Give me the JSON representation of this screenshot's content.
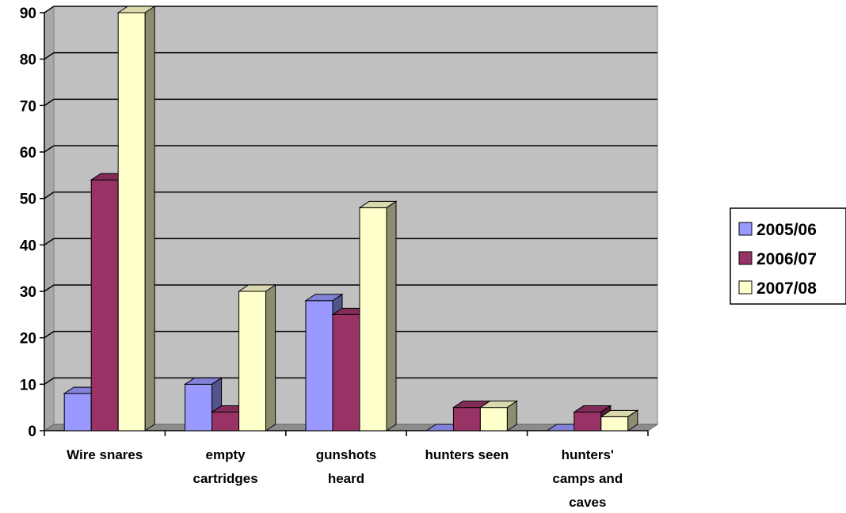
{
  "chart_data": {
    "type": "bar",
    "style": "3d-clustered-column",
    "categories": [
      [
        "Wire snares"
      ],
      [
        "empty",
        "cartridges"
      ],
      [
        "gunshots",
        "heard"
      ],
      [
        "hunters seen"
      ],
      [
        "hunters'",
        "camps and",
        "caves"
      ]
    ],
    "series": [
      {
        "name": "2005/06",
        "values": [
          8,
          10,
          28,
          0,
          0
        ],
        "color": "#9999FF"
      },
      {
        "name": "2006/07",
        "values": [
          54,
          4,
          25,
          5,
          4
        ],
        "color": "#993366"
      },
      {
        "name": "2007/08",
        "values": [
          90,
          30,
          48,
          5,
          3
        ],
        "color": "#FFFFCC"
      }
    ],
    "title": "",
    "xlabel": "",
    "ylabel": "",
    "ylim": [
      0,
      90
    ],
    "yticks": [
      "0",
      "10",
      "20",
      "30",
      "40",
      "50",
      "60",
      "70",
      "80",
      "90"
    ],
    "grid": true,
    "wall_color": "#C0C0C0",
    "legend": {
      "position": "right",
      "border": true
    }
  }
}
